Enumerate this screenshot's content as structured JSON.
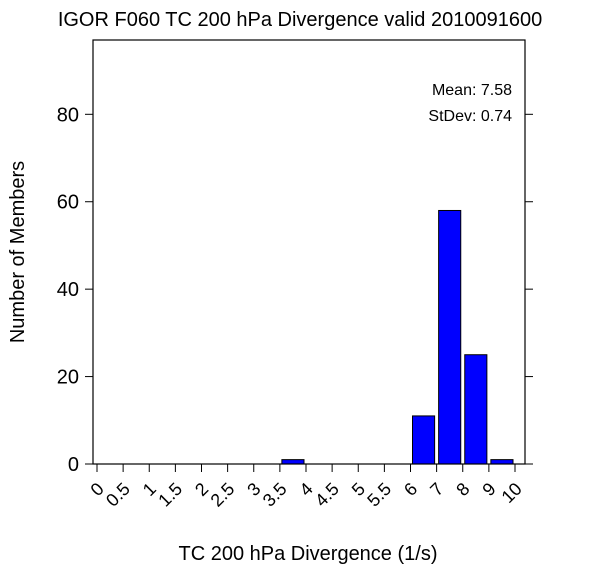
{
  "chart_data": {
    "type": "bar",
    "title": "IGOR F060 TC 200 hPa Divergence valid 2010091600",
    "xlabel": "TC 200 hPa Divergence (1/s)",
    "ylabel": "Number of Members",
    "x_tick_labels": [
      "0",
      "0.5",
      "1",
      "1.5",
      "2",
      "2.5",
      "3",
      "3.5",
      "4",
      "4.5",
      "5",
      "5.5",
      "6",
      "7",
      "8",
      "9",
      "10"
    ],
    "y_ticks": [
      0,
      20,
      40,
      60,
      80
    ],
    "ylim": [
      0,
      97
    ],
    "grid": false,
    "bar_color": "#0000ff",
    "bins": [
      {
        "range": "3.5-4",
        "value": 1
      },
      {
        "range": "6-7",
        "value": 11
      },
      {
        "range": "7-8",
        "value": 58
      },
      {
        "range": "8-9",
        "value": 25
      },
      {
        "range": "9-10",
        "value": 1
      }
    ],
    "stats": {
      "mean_label": "Mean: 7.58",
      "stdev_label": "StDev: 0.74"
    }
  }
}
